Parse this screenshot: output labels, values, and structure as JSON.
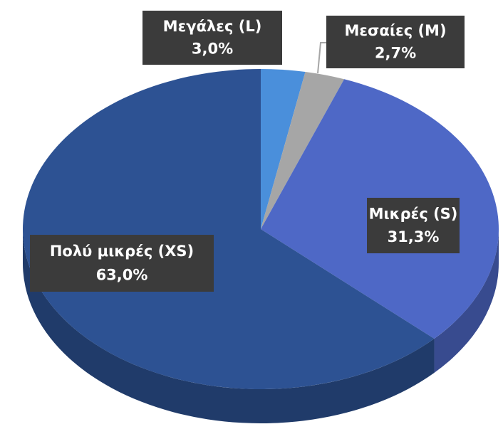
{
  "chart_data": {
    "type": "pie",
    "categories": [
      "Μεγάλες (L)",
      "Μεσαίες (M)",
      "Μικρές (S)",
      "Πολύ μικρές (XS)"
    ],
    "values": [
      3.0,
      2.7,
      31.3,
      63.0
    ],
    "value_labels": [
      "3,0%",
      "2,7%",
      "31,3%",
      "63,0%"
    ],
    "colors": [
      "#4a8fdb",
      "#a6a6a6",
      "#4e68c6",
      "#2d5293"
    ]
  }
}
